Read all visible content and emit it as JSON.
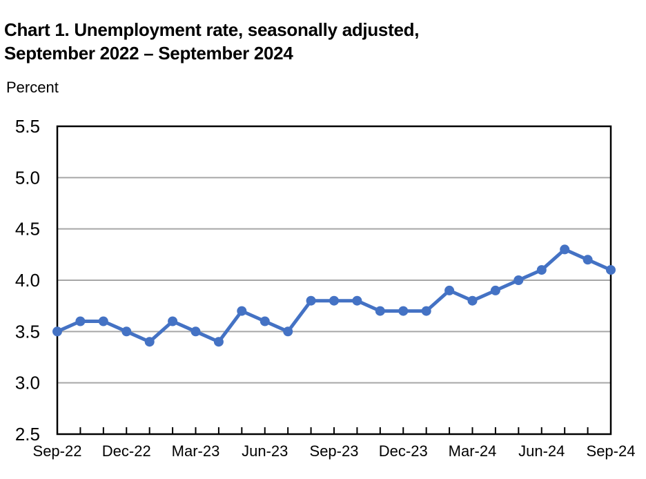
{
  "page": {
    "title_line1": "Chart 1. Unemployment rate, seasonally adjusted,",
    "title_line2": "September 2022 – September 2024",
    "axis_caption": "Percent"
  },
  "chart_data": {
    "type": "line",
    "title": "Chart 1. Unemployment rate, seasonally adjusted, September 2022 – September 2024",
    "ylabel": "Percent",
    "xlabel": "",
    "series_name": "Unemployment rate",
    "x": [
      "Sep-22",
      "Oct-22",
      "Nov-22",
      "Dec-22",
      "Jan-23",
      "Feb-23",
      "Mar-23",
      "Apr-23",
      "May-23",
      "Jun-23",
      "Jul-23",
      "Aug-23",
      "Sep-23",
      "Oct-23",
      "Nov-23",
      "Dec-23",
      "Jan-24",
      "Feb-24",
      "Mar-24",
      "Apr-24",
      "May-24",
      "Jun-24",
      "Jul-24",
      "Aug-24",
      "Sep-24"
    ],
    "values": [
      3.5,
      3.6,
      3.6,
      3.5,
      3.4,
      3.6,
      3.5,
      3.4,
      3.7,
      3.6,
      3.5,
      3.8,
      3.8,
      3.8,
      3.7,
      3.7,
      3.7,
      3.9,
      3.8,
      3.9,
      4.0,
      4.1,
      4.3,
      4.2,
      4.1
    ],
    "ylim": [
      2.5,
      5.5
    ],
    "yticks": [
      {
        "value": 2.5,
        "label": "2.5"
      },
      {
        "value": 3.0,
        "label": "3.0"
      },
      {
        "value": 3.5,
        "label": "3.5"
      },
      {
        "value": 4.0,
        "label": "4.0"
      },
      {
        "value": 4.5,
        "label": "4.5"
      },
      {
        "value": 5.0,
        "label": "5.0"
      },
      {
        "value": 5.5,
        "label": "5.5"
      }
    ],
    "xtick_labels": [
      "Sep-22",
      "Dec-22",
      "Mar-23",
      "Jun-23",
      "Sep-23",
      "Dec-23",
      "Mar-24",
      "Jun-24",
      "Sep-24"
    ],
    "xtick_every": 3,
    "grid": "horizontal",
    "legend": "none",
    "colors": {
      "line": "#4472C4",
      "gridline": "#A6A6A6",
      "axis": "#000000",
      "text": "#000000",
      "background": "#FFFFFF"
    }
  }
}
